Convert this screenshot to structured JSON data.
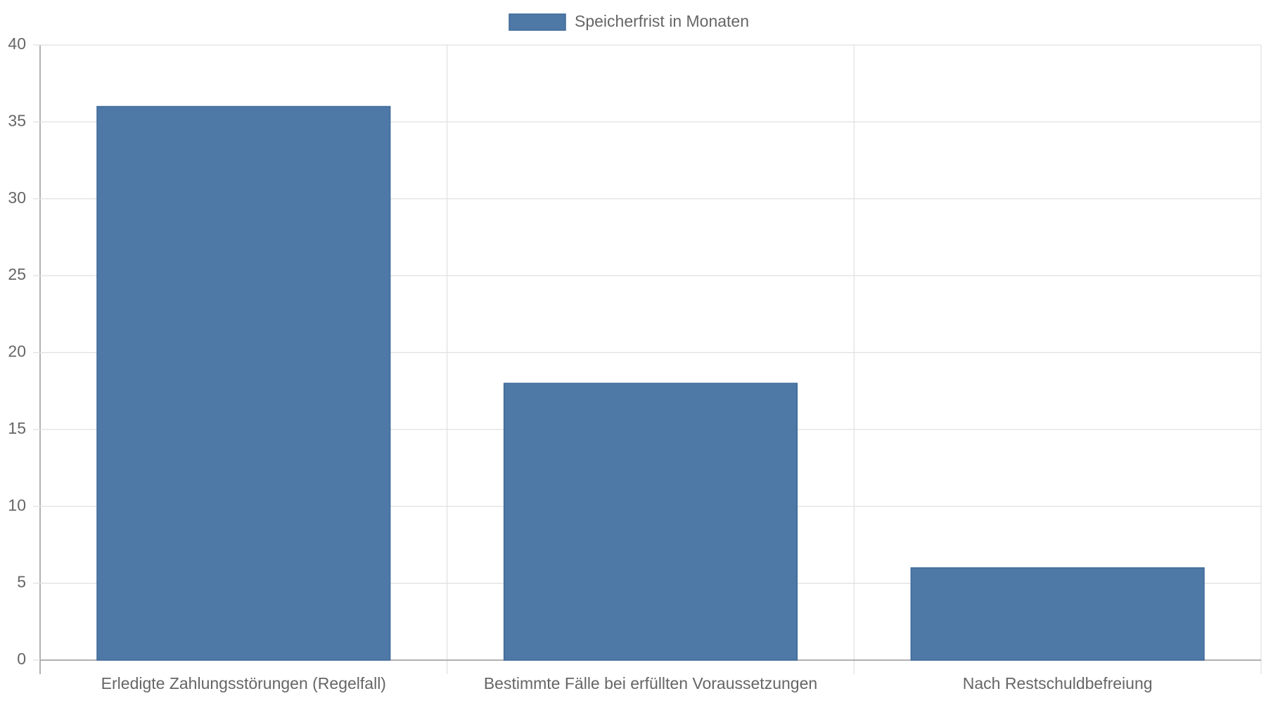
{
  "chart_data": {
    "type": "bar",
    "categories": [
      "Erledigte Zahlungsstörungen (Regelfall)",
      "Bestimmte Fälle bei erfüllten Voraussetzungen",
      "Nach Restschuldbefreiung"
    ],
    "series": [
      {
        "name": "Speicherfrist in Monaten",
        "color": "#4e79a7",
        "values": [
          36,
          18,
          6
        ]
      }
    ],
    "ylim": [
      0,
      40
    ],
    "yticks": [
      0,
      5,
      10,
      15,
      20,
      25,
      30,
      35,
      40
    ],
    "grid": true,
    "legend": "top"
  }
}
